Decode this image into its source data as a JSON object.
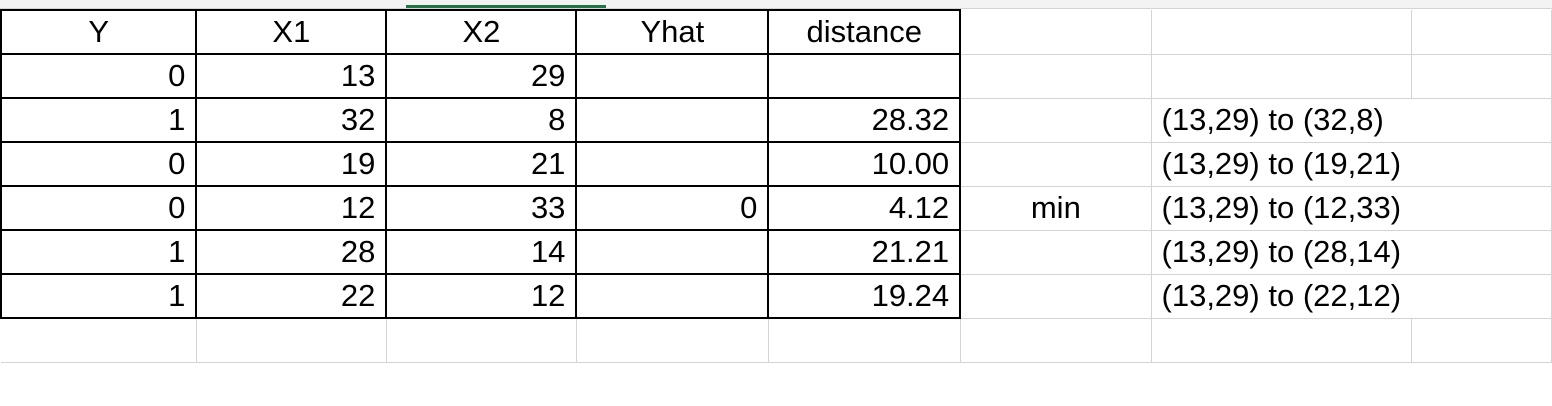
{
  "sheet": {
    "headers": [
      "Y",
      "X1",
      "X2",
      "Yhat",
      "distance"
    ],
    "rows": [
      {
        "Y": "0",
        "X1": "13",
        "X2": "29",
        "Yhat": "",
        "distance": "",
        "note": "",
        "pair": ""
      },
      {
        "Y": "1",
        "X1": "32",
        "X2": "8",
        "Yhat": "",
        "distance": "28.32",
        "note": "",
        "pair": "(13,29) to (32,8)"
      },
      {
        "Y": "0",
        "X1": "19",
        "X2": "21",
        "Yhat": "",
        "distance": "10.00",
        "note": "",
        "pair": "(13,29) to (19,21)"
      },
      {
        "Y": "0",
        "X1": "12",
        "X2": "33",
        "Yhat": "0",
        "distance": "4.12",
        "note": "min",
        "pair": "(13,29) to (12,33)"
      },
      {
        "Y": "1",
        "X1": "28",
        "X2": "14",
        "Yhat": "",
        "distance": "21.21",
        "note": "",
        "pair": "(13,29) to (28,14)"
      },
      {
        "Y": "1",
        "X1": "22",
        "X2": "12",
        "Yhat": "",
        "distance": "19.24",
        "note": "",
        "pair": "(13,29) to (22,12)"
      }
    ]
  },
  "colors": {
    "gridline": "#d4d4d4",
    "border": "#000000",
    "selection_accent": "#217346"
  }
}
